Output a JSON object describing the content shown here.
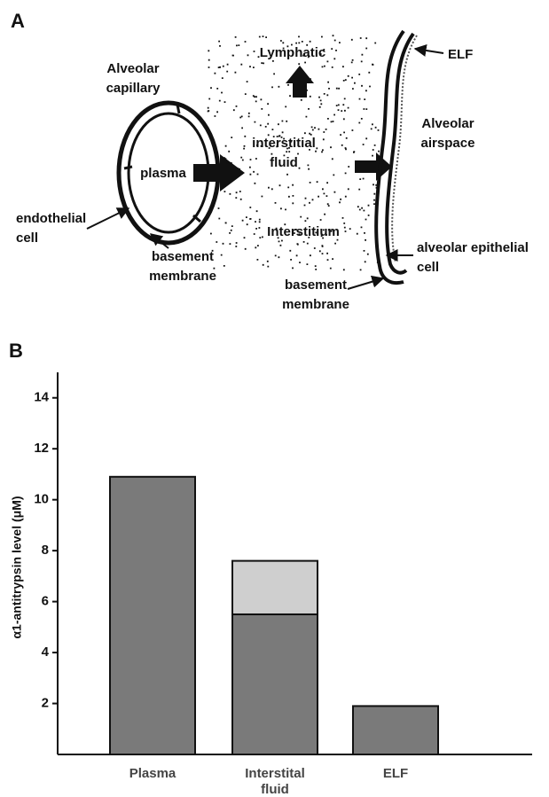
{
  "panel_a": {
    "panel_label": "A",
    "lymphatic": "Lymphatic",
    "elf": "ELF",
    "capillary_1": "Alveolar",
    "capillary_2": "capillary",
    "airspace_1": "Alveolar",
    "airspace_2": "airspace",
    "fluid_1": "interstitial",
    "fluid_2": "fluid",
    "plasma": "plasma",
    "endothelial_1": "endothelial",
    "endothelial_2": "cell",
    "interstitium": "Interstitium",
    "basement_left_1": "basement",
    "basement_left_2": "membrane",
    "epithelial_1": "alveolar epithelial",
    "epithelial_2": "cell",
    "basement_right_1": "basement",
    "basement_right_2": "membrane"
  },
  "chart_data": {
    "type": "bar",
    "stacked": true,
    "panel_label": "B",
    "y_label": "α1-antitrypsin level (μM)",
    "categories": [
      "Plasma",
      "Interstital fluid",
      "ELF"
    ],
    "series": [
      {
        "color": "#7a7a7a",
        "values": [
          10.9,
          5.5,
          1.9
        ]
      },
      {
        "color": "#cfcfcf",
        "values": [
          null,
          2.1,
          null
        ]
      }
    ],
    "ylim": [
      0,
      15
    ],
    "yticks": [
      2,
      4,
      6,
      8,
      10,
      12,
      14
    ]
  }
}
